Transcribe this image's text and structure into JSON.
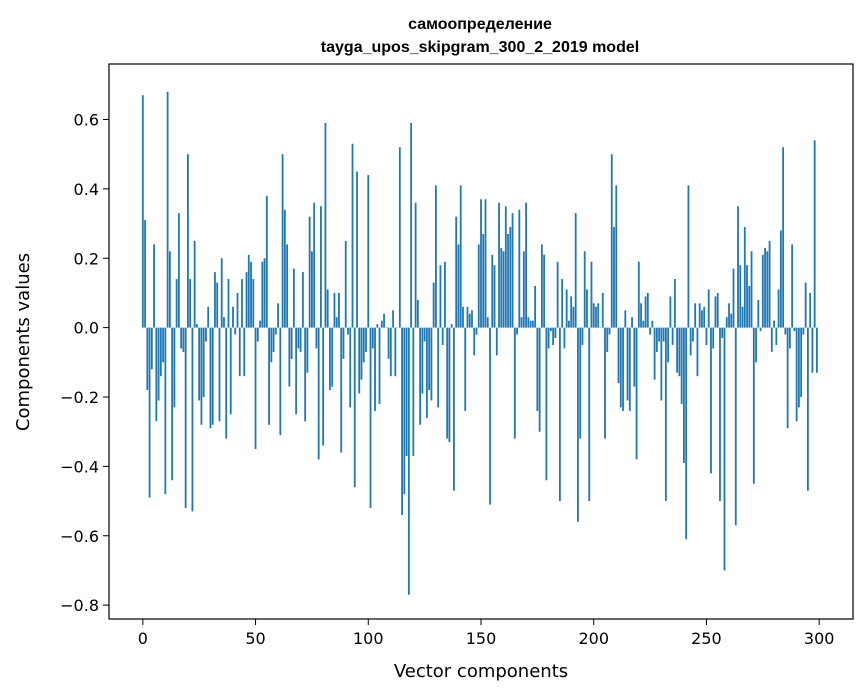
{
  "chart_data": {
    "type": "bar",
    "title": "самоопределение",
    "subtitle": "tayga_upos_skipgram_300_2_2019 model",
    "xlabel": "Vector components",
    "ylabel": "Components values",
    "xlim": [
      -15,
      315
    ],
    "ylim": [
      -0.84,
      0.76
    ],
    "xticks": [
      0,
      50,
      100,
      150,
      200,
      250,
      300
    ],
    "xtick_labels": [
      "0",
      "50",
      "100",
      "150",
      "200",
      "250",
      "300"
    ],
    "yticks": [
      -0.8,
      -0.6,
      -0.4,
      -0.2,
      0.0,
      0.2,
      0.4,
      0.6
    ],
    "ytick_labels": [
      "−0.8",
      "−0.6",
      "−0.4",
      "−0.2",
      "0.0",
      "0.2",
      "0.4",
      "0.6"
    ],
    "grid": false,
    "bar_color": "#1f77b4",
    "x": [
      0,
      1,
      2,
      3,
      4,
      5,
      6,
      7,
      8,
      9,
      10,
      11,
      12,
      13,
      14,
      15,
      16,
      17,
      18,
      19,
      20,
      21,
      22,
      23,
      24,
      25,
      26,
      27,
      28,
      29,
      30,
      31,
      32,
      33,
      34,
      35,
      36,
      37,
      38,
      39,
      40,
      41,
      42,
      43,
      44,
      45,
      46,
      47,
      48,
      49,
      50,
      51,
      52,
      53,
      54,
      55,
      56,
      57,
      58,
      59,
      60,
      61,
      62,
      63,
      64,
      65,
      66,
      67,
      68,
      69,
      70,
      71,
      72,
      73,
      74,
      75,
      76,
      77,
      78,
      79,
      80,
      81,
      82,
      83,
      84,
      85,
      86,
      87,
      88,
      89,
      90,
      91,
      92,
      93,
      94,
      95,
      96,
      97,
      98,
      99,
      100,
      101,
      102,
      103,
      104,
      105,
      106,
      107,
      108,
      109,
      110,
      111,
      112,
      113,
      114,
      115,
      116,
      117,
      118,
      119,
      120,
      121,
      122,
      123,
      124,
      125,
      126,
      127,
      128,
      129,
      130,
      131,
      132,
      133,
      134,
      135,
      136,
      137,
      138,
      139,
      140,
      141,
      142,
      143,
      144,
      145,
      146,
      147,
      148,
      149,
      150,
      151,
      152,
      153,
      154,
      155,
      156,
      157,
      158,
      159,
      160,
      161,
      162,
      163,
      164,
      165,
      166,
      167,
      168,
      169,
      170,
      171,
      172,
      173,
      174,
      175,
      176,
      177,
      178,
      179,
      180,
      181,
      182,
      183,
      184,
      185,
      186,
      187,
      188,
      189,
      190,
      191,
      192,
      193,
      194,
      195,
      196,
      197,
      198,
      199,
      200,
      201,
      202,
      203,
      204,
      205,
      206,
      207,
      208,
      209,
      210,
      211,
      212,
      213,
      214,
      215,
      216,
      217,
      218,
      219,
      220,
      221,
      222,
      223,
      224,
      225,
      226,
      227,
      228,
      229,
      230,
      231,
      232,
      233,
      234,
      235,
      236,
      237,
      238,
      239,
      240,
      241,
      242,
      243,
      244,
      245,
      246,
      247,
      248,
      249,
      250,
      251,
      252,
      253,
      254,
      255,
      256,
      257,
      258,
      259,
      260,
      261,
      262,
      263,
      264,
      265,
      266,
      267,
      268,
      269,
      270,
      271,
      272,
      273,
      274,
      275,
      276,
      277,
      278,
      279,
      280,
      281,
      282,
      283,
      284,
      285,
      286,
      287,
      288,
      289,
      290,
      291,
      292,
      293,
      294,
      295,
      296,
      297,
      298,
      299
    ],
    "values": [
      0.67,
      0.31,
      -0.18,
      -0.49,
      -0.12,
      0.24,
      -0.27,
      -0.21,
      -0.14,
      -0.1,
      -0.48,
      0.68,
      0.22,
      -0.44,
      -0.23,
      0.14,
      0.33,
      -0.06,
      -0.07,
      -0.52,
      0.5,
      0.14,
      -0.53,
      0.25,
      0.01,
      -0.21,
      -0.28,
      -0.2,
      -0.04,
      0.06,
      -0.29,
      -0.28,
      0.16,
      0.13,
      -0.27,
      0.2,
      0.03,
      -0.32,
      0.14,
      -0.25,
      0.06,
      -0.02,
      0.1,
      -0.14,
      0.14,
      -0.14,
      0.16,
      0.21,
      0.19,
      0.14,
      -0.35,
      -0.04,
      0.02,
      0.19,
      0.2,
      0.38,
      -0.28,
      -0.1,
      -0.07,
      -0.02,
      0.07,
      -0.31,
      0.5,
      0.34,
      0.24,
      -0.17,
      -0.09,
      0.17,
      -0.25,
      -0.06,
      -0.07,
      0.16,
      -0.27,
      -0.13,
      0.32,
      0.22,
      0.36,
      -0.06,
      -0.38,
      0.35,
      -0.34,
      0.59,
      0.11,
      -0.18,
      -0.17,
      0.1,
      0.03,
      0.1,
      -0.36,
      -0.09,
      0.25,
      -0.02,
      -0.23,
      0.53,
      -0.46,
      0.45,
      -0.19,
      -0.15,
      -0.1,
      -0.07,
      0.44,
      -0.52,
      -0.06,
      -0.24,
      0.01,
      -0.22,
      0.02,
      0.04,
      0.0,
      -0.09,
      -0.14,
      0.05,
      -0.14,
      0.0,
      0.52,
      -0.54,
      -0.48,
      -0.37,
      -0.77,
      0.59,
      -0.37,
      0.36,
      0.08,
      -0.28,
      -0.19,
      -0.04,
      -0.26,
      -0.18,
      -0.21,
      0.13,
      0.41,
      -0.23,
      0.18,
      -0.05,
      0.19,
      -0.32,
      -0.33,
      0.01,
      -0.47,
      0.32,
      0.24,
      0.41,
      0.06,
      -0.24,
      0.06,
      0.04,
      0.05,
      -0.08,
      -0.02,
      0.24,
      0.37,
      0.27,
      0.37,
      0.03,
      -0.51,
      0.21,
      0.18,
      -0.08,
      0.36,
      0.23,
      0.22,
      0.35,
      0.27,
      0.29,
      0.33,
      -0.32,
      -0.02,
      0.34,
      0.03,
      0.22,
      0.36,
      0.03,
      0.02,
      0.02,
      0.12,
      -0.24,
      -0.3,
      0.24,
      0.21,
      -0.44,
      -0.06,
      -0.01,
      -0.05,
      -0.03,
      0.19,
      -0.5,
      0.14,
      -0.06,
      0.11,
      0.02,
      0.09,
      0.06,
      0.33,
      -0.56,
      -0.32,
      -0.05,
      0.22,
      0.11,
      -0.5,
      0.19,
      0.07,
      0.06,
      0.07,
      0.0,
      0.1,
      -0.32,
      -0.07,
      -0.02,
      0.5,
      0.29,
      0.41,
      -0.16,
      -0.23,
      -0.24,
      0.05,
      -0.21,
      -0.24,
      0.03,
      -0.17,
      -0.38,
      0.19,
      0.07,
      0.02,
      0.09,
      0.1,
      -0.02,
      0.02,
      -0.15,
      -0.07,
      -0.04,
      -0.21,
      -0.04,
      -0.5,
      -0.1,
      0.09,
      -0.05,
      0.14,
      -0.13,
      -0.14,
      -0.22,
      -0.39,
      -0.61,
      0.41,
      -0.08,
      -0.04,
      0.07,
      -0.14,
      0.07,
      0.05,
      0.06,
      -0.05,
      0.11,
      -0.42,
      -0.06,
      0.09,
      0.1,
      -0.5,
      -0.03,
      -0.7,
      0.03,
      0.07,
      0.04,
      0.17,
      -0.57,
      0.35,
      0.18,
      0.06,
      0.29,
      0.18,
      0.12,
      0.22,
      -0.45,
      -0.1,
      0.08,
      -0.01,
      0.21,
      0.23,
      0.22,
      0.25,
      -0.07,
      0.02,
      -0.05,
      0.11,
      0.28,
      0.52,
      -0.02,
      -0.29,
      -0.06,
      0.24,
      -0.01,
      -0.27,
      -0.23,
      -0.2,
      -0.02,
      0.13,
      -0.47,
      0.1,
      -0.13,
      0.54,
      -0.13
    ]
  }
}
